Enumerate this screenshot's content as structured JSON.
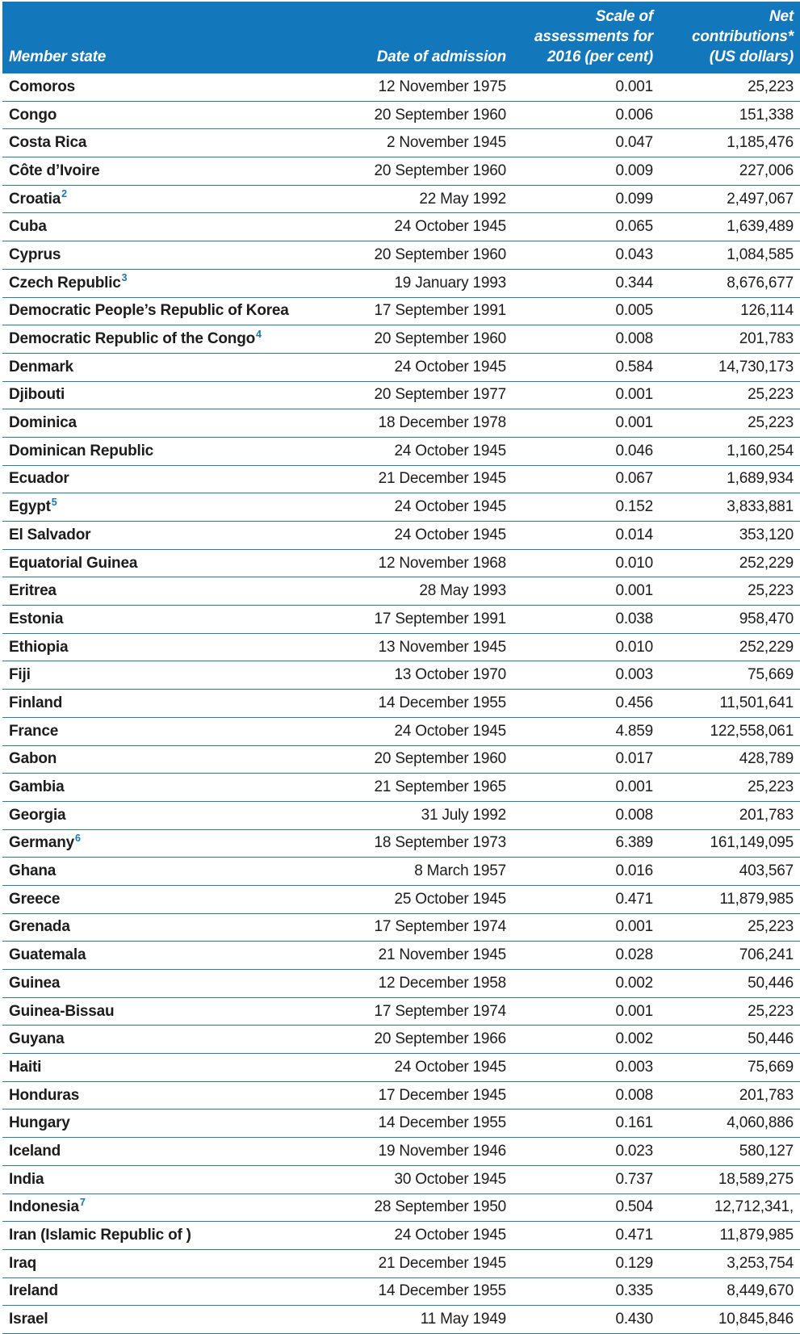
{
  "colors": {
    "header_background": "#1377bc",
    "header_text": "#ffffff",
    "row_separator": "#2180b2",
    "body_text": "#1c1c1c",
    "footnote_marker": "#1377bc"
  },
  "table": {
    "columns": [
      {
        "key": "member-state",
        "lines": [
          "Member state"
        ]
      },
      {
        "key": "date-of-admission",
        "lines": [
          "Date of admission"
        ]
      },
      {
        "key": "scale-of-assessments",
        "lines": [
          "Scale of",
          "assessments for",
          "2016 (per cent)"
        ]
      },
      {
        "key": "net-contributions",
        "lines": [
          "Net",
          "contributions*",
          "(US dollars)"
        ]
      }
    ],
    "rows": [
      {
        "state": "Comoros",
        "sup": "",
        "date": "12 November 1975",
        "scale": "0.001",
        "net": "25,223"
      },
      {
        "state": "Congo",
        "sup": "",
        "date": "20 September 1960",
        "scale": "0.006",
        "net": "151,338"
      },
      {
        "state": "Costa Rica",
        "sup": "",
        "date": "2 November 1945",
        "scale": "0.047",
        "net": "1,185,476"
      },
      {
        "state": "Côte d’Ivoire",
        "sup": "",
        "date": "20 September 1960",
        "scale": "0.009",
        "net": "227,006"
      },
      {
        "state": "Croatia",
        "sup": "2",
        "date": "22 May 1992",
        "scale": "0.099",
        "net": "2,497,067"
      },
      {
        "state": "Cuba",
        "sup": "",
        "date": "24 October 1945",
        "scale": "0.065",
        "net": "1,639,489"
      },
      {
        "state": "Cyprus",
        "sup": "",
        "date": "20 September 1960",
        "scale": "0.043",
        "net": "1,084,585"
      },
      {
        "state": "Czech Republic",
        "sup": "3",
        "date": "19 January 1993",
        "scale": "0.344",
        "net": "8,676,677"
      },
      {
        "state": "Democratic People’s Republic of Korea",
        "sup": "",
        "date": "17 September 1991",
        "scale": "0.005",
        "net": "126,114"
      },
      {
        "state": "Democratic Republic of the Congo",
        "sup": "4",
        "date": "20 September 1960",
        "scale": "0.008",
        "net": "201,783"
      },
      {
        "state": "Denmark",
        "sup": "",
        "date": "24 October 1945",
        "scale": "0.584",
        "net": "14,730,173"
      },
      {
        "state": "Djibouti",
        "sup": "",
        "date": "20 September 1977",
        "scale": "0.001",
        "net": "25,223"
      },
      {
        "state": "Dominica",
        "sup": "",
        "date": "18 December 1978",
        "scale": "0.001",
        "net": "25,223"
      },
      {
        "state": "Dominican Republic",
        "sup": "",
        "date": "24 October 1945",
        "scale": "0.046",
        "net": "1,160,254"
      },
      {
        "state": "Ecuador",
        "sup": "",
        "date": "21 December 1945",
        "scale": "0.067",
        "net": "1,689,934"
      },
      {
        "state": "Egypt",
        "sup": "5",
        "date": "24 October 1945",
        "scale": "0.152",
        "net": "3,833,881"
      },
      {
        "state": "El Salvador",
        "sup": "",
        "date": "24 October 1945",
        "scale": "0.014",
        "net": "353,120"
      },
      {
        "state": "Equatorial Guinea",
        "sup": "",
        "date": "12 November 1968",
        "scale": "0.010",
        "net": "252,229"
      },
      {
        "state": "Eritrea",
        "sup": "",
        "date": "28 May 1993",
        "scale": "0.001",
        "net": "25,223"
      },
      {
        "state": "Estonia",
        "sup": "",
        "date": "17 September 1991",
        "scale": "0.038",
        "net": "958,470"
      },
      {
        "state": "Ethiopia",
        "sup": "",
        "date": "13 November 1945",
        "scale": "0.010",
        "net": "252,229"
      },
      {
        "state": "Fiji",
        "sup": "",
        "date": "13 October 1970",
        "scale": "0.003",
        "net": "75,669"
      },
      {
        "state": "Finland",
        "sup": "",
        "date": "14 December 1955",
        "scale": "0.456",
        "net": "11,501,641"
      },
      {
        "state": "France",
        "sup": "",
        "date": "24 October 1945",
        "scale": "4.859",
        "net": "122,558,061"
      },
      {
        "state": "Gabon",
        "sup": "",
        "date": "20 September 1960",
        "scale": "0.017",
        "net": "428,789"
      },
      {
        "state": "Gambia",
        "sup": "",
        "date": "21 September 1965",
        "scale": "0.001",
        "net": "25,223"
      },
      {
        "state": "Georgia",
        "sup": "",
        "date": "31 July 1992",
        "scale": "0.008",
        "net": "201,783"
      },
      {
        "state": "Germany",
        "sup": "6",
        "date": "18 September 1973",
        "scale": "6.389",
        "net": "161,149,095"
      },
      {
        "state": "Ghana",
        "sup": "",
        "date": "8 March 1957",
        "scale": "0.016",
        "net": "403,567"
      },
      {
        "state": "Greece",
        "sup": "",
        "date": "25 October 1945",
        "scale": "0.471",
        "net": "11,879,985"
      },
      {
        "state": "Grenada",
        "sup": "",
        "date": "17 September 1974",
        "scale": "0.001",
        "net": "25,223"
      },
      {
        "state": "Guatemala",
        "sup": "",
        "date": "21 November 1945",
        "scale": "0.028",
        "net": "706,241"
      },
      {
        "state": "Guinea",
        "sup": "",
        "date": "12 December 1958",
        "scale": "0.002",
        "net": "50,446"
      },
      {
        "state": "Guinea-Bissau",
        "sup": "",
        "date": "17 September 1974",
        "scale": "0.001",
        "net": "25,223"
      },
      {
        "state": "Guyana",
        "sup": "",
        "date": "20 September 1966",
        "scale": "0.002",
        "net": "50,446"
      },
      {
        "state": "Haiti",
        "sup": "",
        "date": "24 October 1945",
        "scale": "0.003",
        "net": "75,669"
      },
      {
        "state": "Honduras",
        "sup": "",
        "date": "17 December 1945",
        "scale": "0.008",
        "net": "201,783"
      },
      {
        "state": "Hungary",
        "sup": "",
        "date": "14 December 1955",
        "scale": "0.161",
        "net": "4,060,886"
      },
      {
        "state": "Iceland",
        "sup": "",
        "date": "19 November 1946",
        "scale": "0.023",
        "net": "580,127"
      },
      {
        "state": "India",
        "sup": "",
        "date": "30 October 1945",
        "scale": "0.737",
        "net": "18,589,275"
      },
      {
        "state": "Indonesia",
        "sup": "7",
        "date": "28 September 1950",
        "scale": "0.504",
        "net": "12,712,341,"
      },
      {
        "state": "Iran (Islamic Republic of )",
        "sup": "",
        "date": "24 October 1945",
        "scale": "0.471",
        "net": "11,879,985"
      },
      {
        "state": "Iraq",
        "sup": "",
        "date": "21 December 1945",
        "scale": "0.129",
        "net": "3,253,754"
      },
      {
        "state": "Ireland",
        "sup": "",
        "date": "14 December 1955",
        "scale": "0.335",
        "net": "8,449,670"
      },
      {
        "state": "Israel",
        "sup": "",
        "date": "11 May 1949",
        "scale": "0.430",
        "net": "10,845,846"
      }
    ]
  }
}
